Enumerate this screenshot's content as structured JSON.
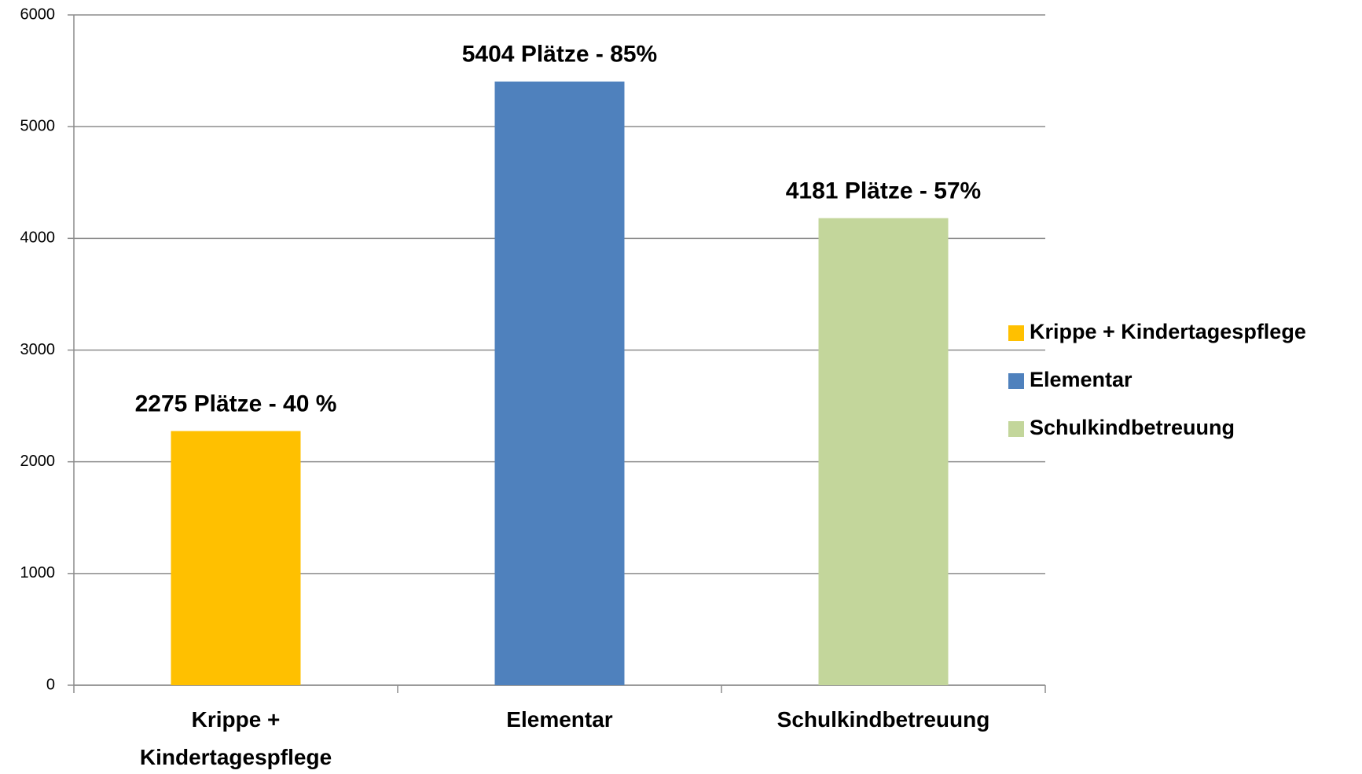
{
  "chart_data": {
    "type": "bar",
    "categories": [
      "Krippe + Kindertagespflege",
      "Elementar",
      "Schulkindbetreuung"
    ],
    "values": [
      2275,
      5404,
      4181
    ],
    "value_labels": [
      "2275 Plätze - 40 %",
      "5404 Plätze - 85%",
      "4181 Plätze - 57%"
    ],
    "colors": [
      "#ffc000",
      "#4f81bd",
      "#c3d69b"
    ],
    "ylim": [
      0,
      6000
    ],
    "yticks": [
      0,
      1000,
      2000,
      3000,
      4000,
      5000,
      6000
    ],
    "grid": true,
    "legend": "right"
  }
}
